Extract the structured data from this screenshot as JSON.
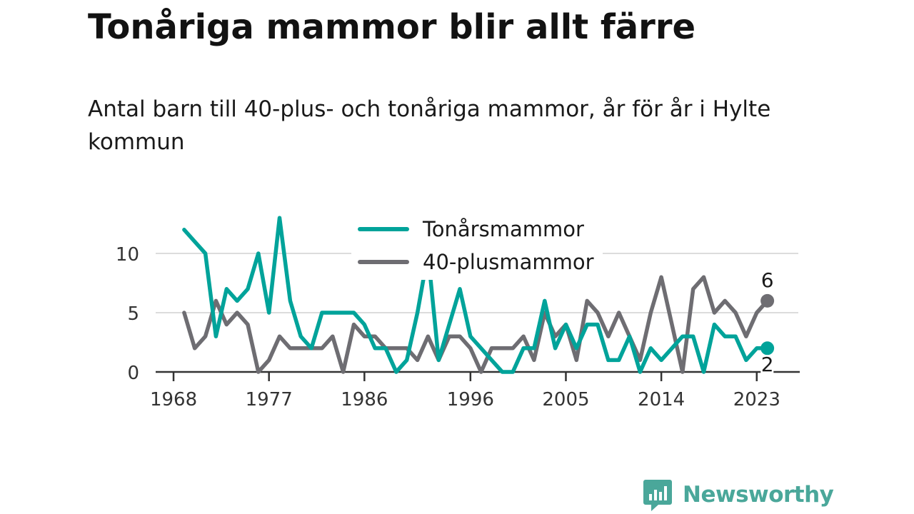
{
  "title": "Tonåriga mammor blir allt färre",
  "subtitle": "Antal barn till 40-plus- och tonåriga mammor, år för år i Hylte kommun",
  "brand": {
    "name": "Newsworthy",
    "color": "#4aa79a"
  },
  "chart_data": {
    "type": "line",
    "x": [
      1969,
      1970,
      1971,
      1972,
      1973,
      1974,
      1975,
      1976,
      1977,
      1978,
      1979,
      1980,
      1981,
      1982,
      1983,
      1984,
      1985,
      1986,
      1987,
      1988,
      1989,
      1990,
      1991,
      1992,
      1993,
      1994,
      1995,
      1996,
      1997,
      1998,
      1999,
      2000,
      2001,
      2002,
      2003,
      2004,
      2005,
      2006,
      2007,
      2008,
      2009,
      2010,
      2011,
      2012,
      2013,
      2014,
      2015,
      2016,
      2017,
      2018,
      2019,
      2020,
      2021,
      2022,
      2023,
      2024
    ],
    "series": [
      {
        "name": "Tonårsmammor",
        "color": "#00a39a",
        "values": [
          12,
          11,
          10,
          3,
          7,
          6,
          7,
          10,
          5,
          13,
          6,
          3,
          2,
          5,
          5,
          5,
          5,
          4,
          2,
          2,
          0,
          1,
          5,
          10,
          1,
          4,
          7,
          3,
          2,
          1,
          0,
          0,
          2,
          2,
          6,
          2,
          4,
          2,
          4,
          4,
          1,
          1,
          3,
          0,
          2,
          1,
          2,
          3,
          3,
          0,
          4,
          3,
          3,
          1,
          2,
          2
        ]
      },
      {
        "name": "40-plusmammor",
        "color": "#6e6d72",
        "values": [
          5,
          2,
          3,
          6,
          4,
          5,
          4,
          0,
          1,
          3,
          2,
          2,
          2,
          2,
          3,
          0,
          4,
          3,
          3,
          2,
          2,
          2,
          1,
          3,
          1,
          3,
          3,
          2,
          0,
          2,
          2,
          2,
          3,
          1,
          5,
          3,
          4,
          1,
          6,
          5,
          3,
          5,
          3,
          1,
          5,
          8,
          4,
          0,
          7,
          8,
          5,
          6,
          5,
          3,
          5,
          6
        ]
      }
    ],
    "end_labels": [
      "6",
      "2"
    ],
    "x_ticks": [
      "1968",
      "1977",
      "1986",
      "1996",
      "2005",
      "2014",
      "2023"
    ],
    "y_ticks": [
      "0",
      "5",
      "10"
    ],
    "ylim": [
      0,
      13
    ],
    "grid": true,
    "legend_position": "top-center"
  }
}
